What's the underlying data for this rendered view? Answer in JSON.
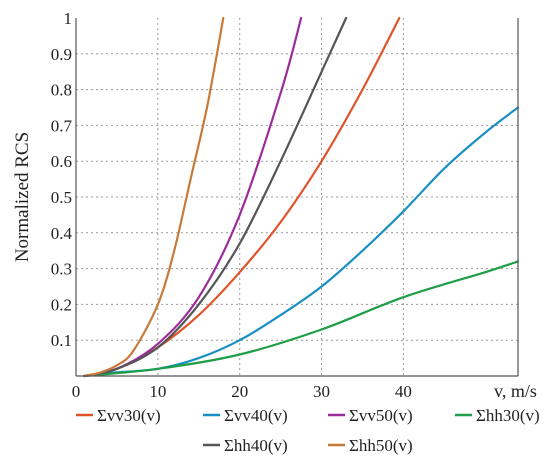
{
  "chart_data": {
    "type": "line",
    "ylabel": "Normalized RCS",
    "xlabel": "v, m/s",
    "xlim": [
      0,
      54
    ],
    "ylim": [
      0,
      1
    ],
    "x_ticks": [
      0,
      10,
      20,
      30,
      40
    ],
    "y_ticks": [
      0.1,
      0.2,
      0.3,
      0.4,
      0.5,
      0.6,
      0.7,
      0.8,
      0.9,
      1
    ],
    "grid": true,
    "legend_position": "bottom",
    "series": [
      {
        "name": "Σvv30(v)",
        "color": "#e0532b",
        "x": [
          1,
          5,
          10,
          15,
          20,
          25,
          30,
          35,
          39.5
        ],
        "y": [
          0.0,
          0.02,
          0.08,
          0.17,
          0.29,
          0.43,
          0.6,
          0.8,
          1.0
        ]
      },
      {
        "name": "Σvv40(v)",
        "color": "#1a8fc4",
        "x": [
          1,
          5,
          10,
          15,
          20,
          25,
          30,
          35,
          40,
          45,
          50,
          54
        ],
        "y": [
          0.0,
          0.01,
          0.02,
          0.05,
          0.1,
          0.17,
          0.25,
          0.35,
          0.46,
          0.58,
          0.68,
          0.75
        ]
      },
      {
        "name": "Σvv50(v)",
        "color": "#9b2d9b",
        "x": [
          1,
          5,
          10,
          15,
          20,
          25,
          27.5
        ],
        "y": [
          0.0,
          0.02,
          0.09,
          0.22,
          0.45,
          0.79,
          1.0
        ]
      },
      {
        "name": "Σhh30(v)",
        "color": "#1f9e48",
        "x": [
          1,
          10,
          20,
          30,
          40,
          50,
          54
        ],
        "y": [
          0.0,
          0.02,
          0.06,
          0.13,
          0.22,
          0.29,
          0.32
        ]
      },
      {
        "name": "Σhh40(v)",
        "color": "#555555",
        "x": [
          1,
          5,
          10,
          15,
          20,
          25,
          30,
          33
        ],
        "y": [
          0.0,
          0.02,
          0.08,
          0.2,
          0.37,
          0.6,
          0.85,
          1.0
        ]
      },
      {
        "name": "Σhh50(v)",
        "color": "#c87a3a",
        "x": [
          1,
          3,
          5,
          7,
          10,
          12,
          14,
          16,
          18
        ],
        "y": [
          0.0,
          0.01,
          0.03,
          0.07,
          0.2,
          0.35,
          0.55,
          0.75,
          1.0
        ]
      }
    ]
  }
}
